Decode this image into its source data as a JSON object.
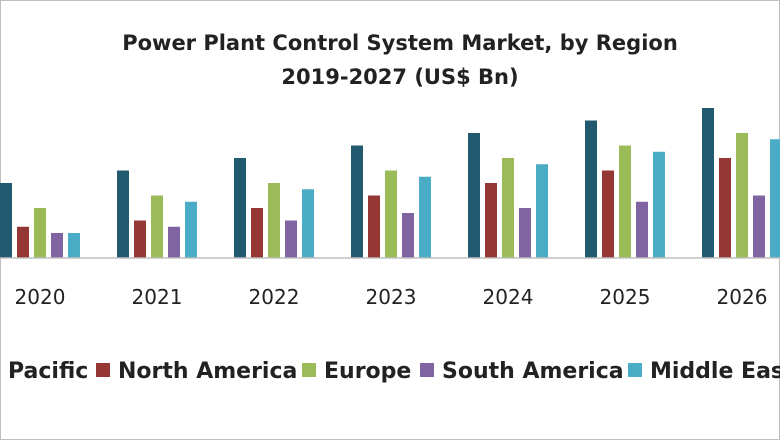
{
  "chart_data": {
    "type": "bar",
    "title": "Power Plant Control System Market, by Region",
    "subtitle": "2019-2027 (US$ Bn)",
    "xlabel": "",
    "ylabel": "",
    "ylim": [
      0,
      130
    ],
    "categories": [
      "2020",
      "2021",
      "2022",
      "2023",
      "2024",
      "2025",
      "2026"
    ],
    "series": [
      {
        "name": "Asia Pacific",
        "color": "#215a6e",
        "values": [
          60,
          70,
          80,
          90,
          100,
          110,
          120
        ]
      },
      {
        "name": "North America",
        "color": "#953735",
        "values": [
          25,
          30,
          40,
          50,
          60,
          70,
          80
        ]
      },
      {
        "name": "Europe",
        "color": "#9bbb59",
        "values": [
          40,
          50,
          60,
          70,
          80,
          90,
          100
        ]
      },
      {
        "name": "South America",
        "color": "#8064a2",
        "values": [
          20,
          25,
          30,
          36,
          40,
          45,
          50
        ]
      },
      {
        "name": "Middle East",
        "color": "#4bacc6",
        "values": [
          20,
          45,
          55,
          65,
          75,
          85,
          95
        ]
      }
    ],
    "legend_labels": [
      "Pacific",
      "North America",
      "Europe",
      "South America",
      "Middle Eas"
    ],
    "legend_position": "bottom"
  }
}
